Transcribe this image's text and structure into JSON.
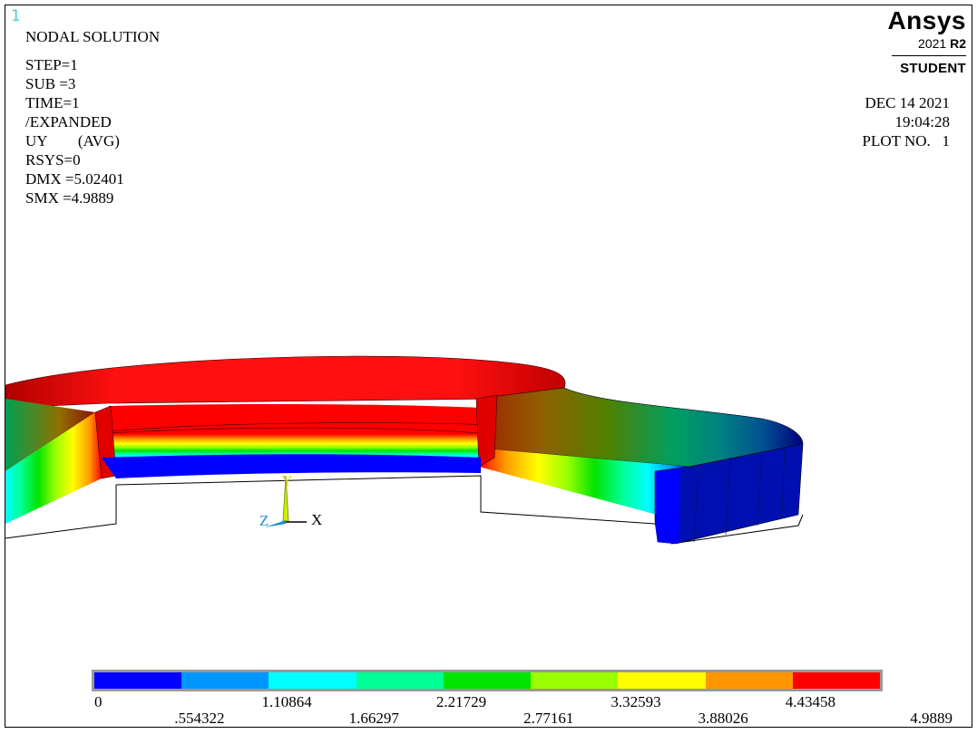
{
  "window_number": "1",
  "plot_info": {
    "title": "NODAL SOLUTION",
    "lines": [
      "STEP=1",
      "SUB =3",
      "TIME=1",
      "/EXPANDED",
      "UY        (AVG)",
      "RSYS=0",
      "DMX =5.02401",
      "SMX =4.9889"
    ]
  },
  "brand": {
    "name": "Ansys",
    "version_prefix": "2021 ",
    "version_bold": "R2",
    "edition": "STUDENT"
  },
  "plot_meta": {
    "date": "DEC 14 2021",
    "time": "19:04:28",
    "plot_no": "PLOT NO.   1"
  },
  "triad": {
    "x": "X",
    "y": "Y",
    "z": "Z"
  },
  "legend": {
    "colors": [
      "#0000ff",
      "#0096ff",
      "#00ffff",
      "#00ff96",
      "#00e400",
      "#9aff00",
      "#ffff00",
      "#ff9600",
      "#ff0000"
    ],
    "labels_top": [
      "0",
      "1.10864",
      "2.21729",
      "3.32593",
      "4.43458"
    ],
    "labels_bottom": [
      ".554322",
      "1.66297",
      "2.77161",
      "3.88026",
      "4.9889"
    ]
  }
}
